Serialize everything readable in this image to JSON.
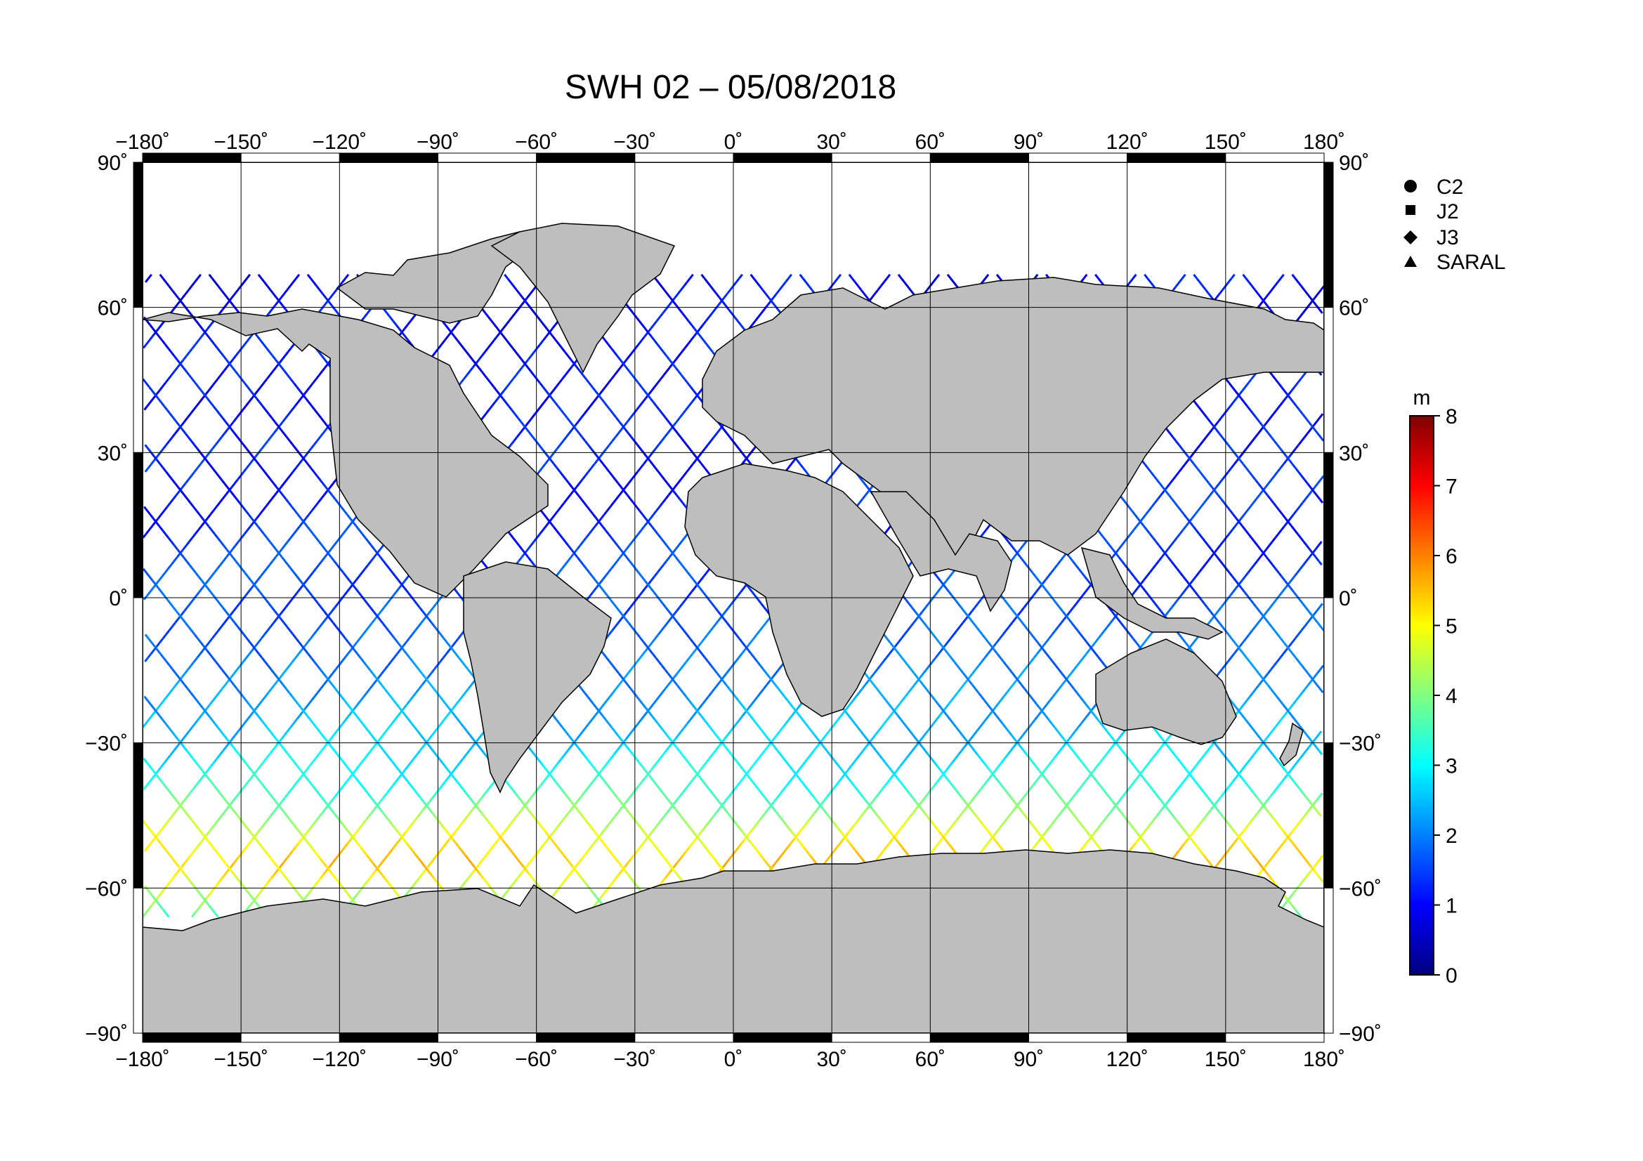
{
  "title": "SWH 02 – 05/08/2018",
  "map": {
    "projection": "equirectangular",
    "lon_range": [
      -180,
      180
    ],
    "lat_range": [
      -90,
      90
    ],
    "lon_ticks": [
      "−180˚",
      "−150˚",
      "−120˚",
      "−90˚",
      "−60˚",
      "−30˚",
      "0˚",
      "30˚",
      "60˚",
      "90˚",
      "120˚",
      "150˚",
      "180˚"
    ],
    "lat_ticks_left": [
      "90˚",
      "60˚",
      "30˚",
      "0˚",
      "−30˚",
      "−60˚",
      "−90˚"
    ],
    "lat_ticks_right": [
      "90˚",
      "60˚",
      "30˚",
      "0˚",
      "−30˚",
      "−60˚",
      "−90˚"
    ],
    "grid": true,
    "grid_step_deg": 30,
    "land_color": "#bebebe",
    "ocean_color": "#ffffff",
    "frame_colors": [
      "#000000",
      "#ffffff"
    ]
  },
  "legend": {
    "placement": "top-right",
    "items": [
      {
        "label": "C2",
        "symbol": "circle"
      },
      {
        "label": "J2",
        "symbol": "square"
      },
      {
        "label": "J3",
        "symbol": "diamond"
      },
      {
        "label": "SARAL",
        "symbol": "triangle"
      }
    ]
  },
  "colorbar": {
    "unit": "m",
    "ticks": [
      "0",
      "1",
      "2",
      "3",
      "4",
      "5",
      "6",
      "7",
      "8"
    ],
    "range": [
      0,
      8
    ],
    "colormap": [
      "#000080",
      "#0000ff",
      "#0080ff",
      "#00ffff",
      "#80ff80",
      "#ffff00",
      "#ff8000",
      "#ff0000",
      "#800000"
    ]
  },
  "chart_data": {
    "type": "scatter",
    "title": "SWH 02 – 05/08/2018",
    "variable": "SWH",
    "unit": "m",
    "xlim": [
      -180,
      180
    ],
    "ylim": [
      -90,
      90
    ],
    "color_range": [
      0,
      8
    ],
    "series": [
      {
        "name": "C2",
        "values": []
      },
      {
        "name": "J2",
        "values": []
      },
      {
        "name": "J3",
        "values": []
      },
      {
        "name": "SARAL",
        "values": []
      }
    ],
    "tracks": {
      "ascending_start_lons": [
        -180,
        -165,
        -150,
        -135,
        -120,
        -105,
        -90,
        -75,
        -60,
        -45,
        -30,
        -15,
        0,
        15,
        30,
        45,
        60,
        75,
        90,
        105,
        120,
        135,
        150,
        165
      ],
      "descending_start_lons": [
        -172,
        -157,
        -142,
        -127,
        -112,
        -97,
        -82,
        -67,
        -52,
        -37,
        -22,
        -7,
        8,
        23,
        38,
        53,
        68,
        83,
        98,
        113,
        128,
        143,
        158,
        173
      ],
      "lat_extent": [
        -66,
        66
      ],
      "lon_per_lat": 1.15,
      "swh_by_lat_m": [
        [
          -66,
          3.6
        ],
        [
          -60,
          4.6
        ],
        [
          -55,
          5.4
        ],
        [
          -50,
          5.0
        ],
        [
          -45,
          4.2
        ],
        [
          -40,
          3.4
        ],
        [
          -30,
          2.6
        ],
        [
          -20,
          2.2
        ],
        [
          -10,
          1.8
        ],
        [
          0,
          1.6
        ],
        [
          10,
          1.4
        ],
        [
          20,
          1.3
        ],
        [
          30,
          1.2
        ],
        [
          40,
          1.1
        ],
        [
          50,
          1.1
        ],
        [
          60,
          1.0
        ],
        [
          66,
          1.0
        ]
      ]
    }
  }
}
